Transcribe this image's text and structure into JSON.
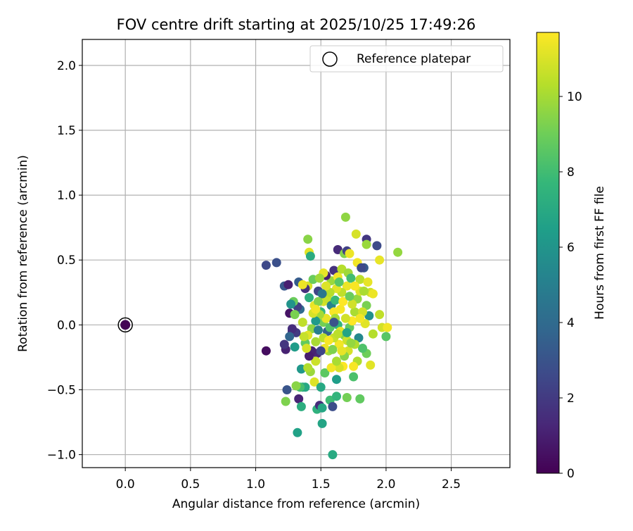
{
  "chart_data": {
    "type": "scatter",
    "title": "FOV centre drift starting at 2025/10/25 17:49:26",
    "xlabel": "Angular distance from reference (arcmin)",
    "ylabel": "Rotation from reference (arcmin)",
    "xlim": [
      -0.33,
      2.95
    ],
    "ylim": [
      -1.1,
      2.2
    ],
    "xticks": [
      0.0,
      0.5,
      1.0,
      1.5,
      2.0,
      2.5
    ],
    "yticks": [
      -1.0,
      -0.5,
      0.0,
      0.5,
      1.0,
      1.5,
      2.0
    ],
    "grid": true,
    "legend": {
      "position": "top-right",
      "entries": [
        "Reference platepar"
      ]
    },
    "reference_point": {
      "x": 0.0,
      "y": 0.0,
      "hours": 0.0
    },
    "colorbar": {
      "label": "Hours from first FF file",
      "range": [
        0,
        11.7
      ],
      "ticks": [
        0,
        2,
        4,
        6,
        8,
        10
      ],
      "colormap": "viridis",
      "stops": [
        "#440154",
        "#482878",
        "#3e4989",
        "#31688e",
        "#26828e",
        "#1f9e89",
        "#35b779",
        "#6ece58",
        "#b5de2b",
        "#fde725"
      ]
    },
    "points": [
      [
        1.08,
        0.46,
        2.6
      ],
      [
        1.16,
        0.48,
        2.9
      ],
      [
        1.22,
        0.3,
        3.2
      ],
      [
        1.25,
        0.31,
        1.0
      ],
      [
        1.26,
        0.09,
        0.6
      ],
      [
        1.08,
        -0.2,
        0.4
      ],
      [
        1.23,
        -0.19,
        1.1
      ],
      [
        1.22,
        -0.15,
        1.8
      ],
      [
        1.28,
        -0.05,
        2.1
      ],
      [
        1.3,
        -0.17,
        6.4
      ],
      [
        1.24,
        -0.5,
        3.1
      ],
      [
        1.23,
        -0.59,
        9.4
      ],
      [
        1.33,
        -0.57,
        1.2
      ],
      [
        1.35,
        -0.63,
        7.3
      ],
      [
        1.32,
        -0.83,
        6.7
      ],
      [
        1.35,
        -0.34,
        6.2
      ],
      [
        1.36,
        -0.48,
        6.6
      ],
      [
        1.4,
        0.66,
        9.6
      ],
      [
        1.41,
        0.56,
        11.2
      ],
      [
        1.42,
        0.53,
        7.2
      ],
      [
        1.4,
        0.3,
        11.0
      ],
      [
        1.38,
        0.28,
        1.6
      ],
      [
        1.44,
        0.35,
        9.0
      ],
      [
        1.45,
        0.15,
        11.3
      ],
      [
        1.48,
        0.26,
        2.4
      ],
      [
        1.46,
        -0.13,
        10.2
      ],
      [
        1.47,
        -0.22,
        1.3
      ],
      [
        1.45,
        -0.44,
        11.1
      ],
      [
        1.47,
        -0.65,
        7.5
      ],
      [
        1.49,
        -0.62,
        1.5
      ],
      [
        1.51,
        -0.64,
        6.9
      ],
      [
        1.51,
        -0.76,
        6.8
      ],
      [
        1.5,
        -0.48,
        7.0
      ],
      [
        1.53,
        -0.37,
        8.7
      ],
      [
        1.57,
        -0.58,
        8.0
      ],
      [
        1.59,
        -0.63,
        2.8
      ],
      [
        1.59,
        -1.0,
        7.1
      ],
      [
        1.62,
        -0.55,
        7.6
      ],
      [
        1.62,
        -0.42,
        6.5
      ],
      [
        1.7,
        -0.56,
        9.2
      ],
      [
        1.8,
        -0.57,
        8.8
      ],
      [
        1.75,
        -0.4,
        8.3
      ],
      [
        1.63,
        0.58,
        1.4
      ],
      [
        1.68,
        0.55,
        9.5
      ],
      [
        1.7,
        0.57,
        2.3
      ],
      [
        1.72,
        0.55,
        11.4
      ],
      [
        1.69,
        0.83,
        9.7
      ],
      [
        1.77,
        0.7,
        11.0
      ],
      [
        1.85,
        0.66,
        1.9
      ],
      [
        1.85,
        0.62,
        9.9
      ],
      [
        1.93,
        0.61,
        2.7
      ],
      [
        1.95,
        0.5,
        11.3
      ],
      [
        2.09,
        0.56,
        9.8
      ],
      [
        1.83,
        0.44,
        3.3
      ],
      [
        1.78,
        0.48,
        11.5
      ],
      [
        1.8,
        0.35,
        10.5
      ],
      [
        1.88,
        0.25,
        10.8
      ],
      [
        1.9,
        0.24,
        11.4
      ],
      [
        1.85,
        0.15,
        9.3
      ],
      [
        1.87,
        0.07,
        5.9
      ],
      [
        1.95,
        0.08,
        10.6
      ],
      [
        1.97,
        -0.02,
        10.9
      ],
      [
        2.01,
        -0.02,
        11.5
      ],
      [
        2.0,
        -0.09,
        8.6
      ],
      [
        1.9,
        -0.07,
        10.4
      ],
      [
        1.88,
        -0.31,
        11.2
      ],
      [
        1.85,
        -0.22,
        9.1
      ],
      [
        1.82,
        -0.18,
        8.4
      ],
      [
        1.78,
        -0.28,
        10.3
      ],
      [
        1.75,
        -0.32,
        11.6
      ],
      [
        1.67,
        -0.32,
        11.7
      ],
      [
        1.64,
        -0.33,
        11.0
      ],
      [
        1.58,
        -0.33,
        11.5
      ],
      [
        1.56,
        -0.2,
        10.0
      ],
      [
        1.53,
        -0.18,
        11.4
      ],
      [
        1.55,
        -0.05,
        3.7
      ],
      [
        1.52,
        0.02,
        9.2
      ],
      [
        1.5,
        0.1,
        7.8
      ],
      [
        1.52,
        0.18,
        11.0
      ],
      [
        1.55,
        0.2,
        10.7
      ],
      [
        1.58,
        0.15,
        5.2
      ],
      [
        1.6,
        0.1,
        11.6
      ],
      [
        1.61,
        0.05,
        10.1
      ],
      [
        1.63,
        0.0,
        7.7
      ],
      [
        1.65,
        -0.05,
        11.3
      ],
      [
        1.68,
        -0.08,
        9.5
      ],
      [
        1.7,
        -0.12,
        10.8
      ],
      [
        1.72,
        -0.02,
        8.9
      ],
      [
        1.74,
        0.03,
        11.7
      ],
      [
        1.76,
        0.1,
        10.2
      ],
      [
        1.78,
        0.2,
        9.8
      ],
      [
        1.8,
        0.26,
        11.1
      ],
      [
        1.7,
        0.3,
        11.4
      ],
      [
        1.66,
        0.25,
        10.6
      ],
      [
        1.62,
        0.28,
        11.2
      ],
      [
        1.58,
        0.34,
        9.9
      ],
      [
        1.6,
        0.42,
        1.7
      ],
      [
        1.63,
        0.37,
        11.5
      ],
      [
        1.66,
        0.43,
        10.4
      ],
      [
        1.71,
        0.4,
        10.0
      ],
      [
        1.73,
        0.36,
        8.1
      ],
      [
        1.76,
        0.3,
        11.6
      ],
      [
        1.82,
        0.1,
        10.9
      ],
      [
        1.84,
        0.01,
        11.2
      ],
      [
        1.79,
        -0.1,
        5.5
      ],
      [
        1.76,
        -0.15,
        10.3
      ],
      [
        1.71,
        -0.2,
        11.0
      ],
      [
        1.68,
        -0.24,
        9.6
      ],
      [
        1.64,
        -0.15,
        11.5
      ],
      [
        1.6,
        -0.1,
        10.7
      ],
      [
        1.57,
        -0.02,
        8.5
      ],
      [
        1.54,
        0.05,
        11.3
      ],
      [
        1.49,
        0.08,
        10.1
      ],
      [
        1.46,
        0.03,
        6.3
      ],
      [
        1.43,
        -0.03,
        9.7
      ],
      [
        1.4,
        -0.08,
        11.2
      ],
      [
        1.38,
        -0.14,
        8.8
      ],
      [
        1.36,
        0.02,
        10.6
      ],
      [
        1.34,
        0.12,
        4.1
      ],
      [
        1.32,
        0.14,
        2.2
      ],
      [
        1.3,
        0.08,
        9.3
      ],
      [
        1.29,
        0.18,
        9.0
      ],
      [
        1.27,
        0.16,
        6.0
      ],
      [
        1.33,
        0.33,
        3.4
      ],
      [
        1.36,
        0.31,
        11.4
      ],
      [
        1.41,
        0.21,
        7.4
      ],
      [
        1.44,
        0.09,
        11.0
      ],
      [
        1.48,
        -0.04,
        5.0
      ],
      [
        1.52,
        -0.1,
        10.5
      ],
      [
        1.56,
        -0.12,
        11.6
      ],
      [
        1.59,
        -0.19,
        9.4
      ],
      [
        1.62,
        -0.28,
        10.2
      ],
      [
        1.66,
        -0.2,
        11.3
      ],
      [
        1.7,
        -0.06,
        6.8
      ],
      [
        1.73,
        -0.14,
        9.8
      ],
      [
        1.69,
        0.05,
        10.9
      ],
      [
        1.65,
        0.12,
        11.6
      ],
      [
        1.61,
        0.19,
        7.9
      ],
      [
        1.57,
        0.25,
        10.4
      ],
      [
        1.54,
        0.3,
        11.1
      ],
      [
        1.51,
        0.24,
        4.6
      ],
      [
        1.48,
        0.18,
        9.5
      ],
      [
        1.46,
        0.12,
        11.5
      ],
      [
        1.5,
        -0.2,
        2.5
      ],
      [
        1.46,
        -0.28,
        10.8
      ],
      [
        1.42,
        -0.36,
        9.9
      ],
      [
        1.4,
        -0.33,
        10.3
      ],
      [
        1.38,
        -0.48,
        7.0
      ],
      [
        1.34,
        -0.48,
        8.2
      ],
      [
        1.31,
        -0.47,
        9.6
      ],
      [
        1.43,
        -0.2,
        1.1
      ],
      [
        1.41,
        -0.24,
        0.9
      ],
      [
        1.39,
        -0.18,
        11.0
      ],
      [
        1.37,
        -0.09,
        10.7
      ],
      [
        1.31,
        -0.06,
        2.0
      ],
      [
        1.28,
        -0.03,
        1.5
      ],
      [
        1.26,
        -0.09,
        3.8
      ],
      [
        1.54,
        0.38,
        1.0
      ],
      [
        1.52,
        0.4,
        11.3
      ],
      [
        1.49,
        0.36,
        10.0
      ],
      [
        1.6,
        0.02,
        3.0
      ],
      [
        1.63,
        -0.07,
        10.5
      ],
      [
        1.67,
        0.18,
        11.7
      ],
      [
        1.74,
        0.16,
        10.9
      ],
      [
        1.72,
        0.22,
        9.0
      ],
      [
        1.64,
        0.33,
        8.6
      ],
      [
        1.81,
        0.44,
        2.6
      ],
      [
        1.86,
        0.33,
        11.3
      ],
      [
        1.83,
        0.26,
        10.2
      ],
      [
        1.8,
        0.05,
        11.5
      ]
    ]
  }
}
